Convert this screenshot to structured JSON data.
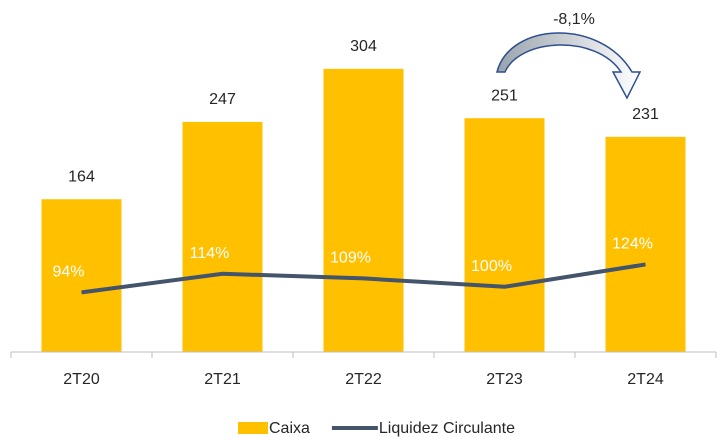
{
  "chart_data": {
    "type": "bar",
    "categories": [
      "2T20",
      "2T21",
      "2T22",
      "2T23",
      "2T24"
    ],
    "series": [
      {
        "name": "Caixa",
        "type": "bar",
        "color": "#ffc000",
        "values": [
          164,
          247,
          304,
          251,
          231
        ]
      },
      {
        "name": "Liquidez Circulante",
        "type": "line",
        "axis": "y2",
        "color": "#44546a",
        "values": [
          94,
          114,
          109,
          100,
          124
        ],
        "value_labels": [
          "94%",
          "114%",
          "109%",
          "100%",
          "124%"
        ]
      }
    ],
    "ylim": [
      0,
      350
    ],
    "y2lim": [
      30,
      380
    ],
    "annotations": [
      "-8,1%"
    ],
    "legend": "bottom"
  }
}
